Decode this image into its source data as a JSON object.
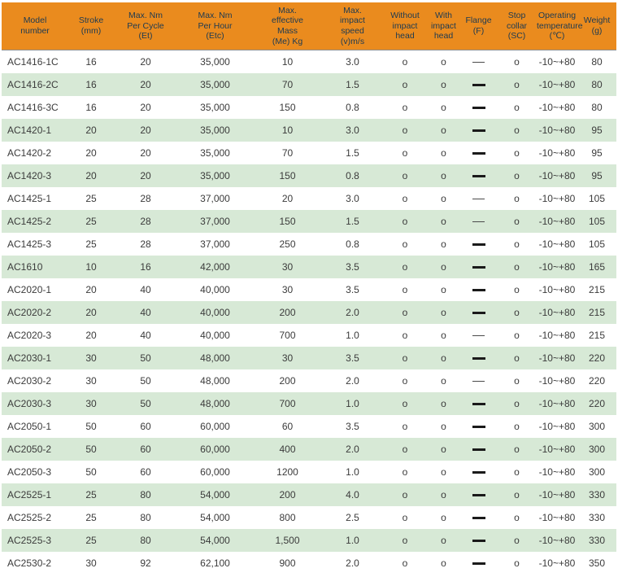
{
  "colors": {
    "header_bg": "#EA8B1E",
    "header_text": "#1C3A52",
    "row_alt_bg": "#D7E9D6",
    "row_bg": "#FFFFFF",
    "body_text": "#3B3B3B",
    "header_rule": "#8F8F8F",
    "dash": "#1A1A1A"
  },
  "table": {
    "columns": [
      {
        "id": "model",
        "label": "Model\nnumber"
      },
      {
        "id": "stroke",
        "label": "Stroke\n(mm)"
      },
      {
        "id": "nm_per_cycle",
        "label": "Max. Nm\nPer Cycle\n(Et)"
      },
      {
        "id": "nm_per_hour",
        "label": "Max. Nm\nPer Hour\n(Etc)"
      },
      {
        "id": "effective_mass",
        "label": "Max.\neffective\nMass\n(Me) Kg"
      },
      {
        "id": "impact_speed",
        "label": "Max.\nimpact\nspeed\n(v)m/s"
      },
      {
        "id": "without_head",
        "label": "Without\nimpact\nhead"
      },
      {
        "id": "with_head",
        "label": "With\nimpact\nhead"
      },
      {
        "id": "flange",
        "label": "Flange\n(F)"
      },
      {
        "id": "stop_collar",
        "label": "Stop\ncollar\n(SC)"
      },
      {
        "id": "operating_temp",
        "label": "Operating\ntemperature\n(℃)"
      },
      {
        "id": "weight",
        "label": "Weight\n(g)"
      }
    ],
    "rows": [
      {
        "model": "AC1416-1C",
        "stroke": "16",
        "nm_per_cycle": "20",
        "nm_per_hour": "35,000",
        "effective_mass": "10",
        "impact_speed": "3.0",
        "without_head": "o",
        "with_head": "o",
        "flange": "dash-thin",
        "stop_collar": "o",
        "operating_temp": "-10~+80",
        "weight": "80"
      },
      {
        "model": "AC1416-2C",
        "stroke": "16",
        "nm_per_cycle": "20",
        "nm_per_hour": "35,000",
        "effective_mass": "70",
        "impact_speed": "1.5",
        "without_head": "o",
        "with_head": "o",
        "flange": "dash-bold",
        "stop_collar": "o",
        "operating_temp": "-10~+80",
        "weight": "80"
      },
      {
        "model": "AC1416-3C",
        "stroke": "16",
        "nm_per_cycle": "20",
        "nm_per_hour": "35,000",
        "effective_mass": "150",
        "impact_speed": "0.8",
        "without_head": "o",
        "with_head": "o",
        "flange": "dash-bold",
        "stop_collar": "o",
        "operating_temp": "-10~+80",
        "weight": "80"
      },
      {
        "model": "AC1420-1",
        "stroke": "20",
        "nm_per_cycle": "20",
        "nm_per_hour": "35,000",
        "effective_mass": "10",
        "impact_speed": "3.0",
        "without_head": "o",
        "with_head": "o",
        "flange": "dash-bold",
        "stop_collar": "o",
        "operating_temp": "-10~+80",
        "weight": "95"
      },
      {
        "model": "AC1420-2",
        "stroke": "20",
        "nm_per_cycle": "20",
        "nm_per_hour": "35,000",
        "effective_mass": "70",
        "impact_speed": "1.5",
        "without_head": "o",
        "with_head": "o",
        "flange": "dash-bold",
        "stop_collar": "o",
        "operating_temp": "-10~+80",
        "weight": "95"
      },
      {
        "model": "AC1420-3",
        "stroke": "20",
        "nm_per_cycle": "20",
        "nm_per_hour": "35,000",
        "effective_mass": "150",
        "impact_speed": "0.8",
        "without_head": "o",
        "with_head": "o",
        "flange": "dash-bold",
        "stop_collar": "o",
        "operating_temp": "-10~+80",
        "weight": "95"
      },
      {
        "model": "AC1425-1",
        "stroke": "25",
        "nm_per_cycle": "28",
        "nm_per_hour": "37,000",
        "effective_mass": "20",
        "impact_speed": "3.0",
        "without_head": "o",
        "with_head": "o",
        "flange": "dash-thin",
        "stop_collar": "o",
        "operating_temp": "-10~+80",
        "weight": "105"
      },
      {
        "model": "AC1425-2",
        "stroke": "25",
        "nm_per_cycle": "28",
        "nm_per_hour": "37,000",
        "effective_mass": "150",
        "impact_speed": "1.5",
        "without_head": "o",
        "with_head": "o",
        "flange": "dash-thin",
        "stop_collar": "o",
        "operating_temp": "-10~+80",
        "weight": "105"
      },
      {
        "model": "AC1425-3",
        "stroke": "25",
        "nm_per_cycle": "28",
        "nm_per_hour": "37,000",
        "effective_mass": "250",
        "impact_speed": "0.8",
        "without_head": "o",
        "with_head": "o",
        "flange": "dash-bold",
        "stop_collar": "o",
        "operating_temp": "-10~+80",
        "weight": "105"
      },
      {
        "model": "AC1610",
        "stroke": "10",
        "nm_per_cycle": "16",
        "nm_per_hour": "42,000",
        "effective_mass": "30",
        "impact_speed": "3.5",
        "without_head": "o",
        "with_head": "o",
        "flange": "dash-bold",
        "stop_collar": "o",
        "operating_temp": "-10~+80",
        "weight": "165"
      },
      {
        "model": "AC2020-1",
        "stroke": "20",
        "nm_per_cycle": "40",
        "nm_per_hour": "40,000",
        "effective_mass": "30",
        "impact_speed": "3.5",
        "without_head": "o",
        "with_head": "o",
        "flange": "dash-bold",
        "stop_collar": "o",
        "operating_temp": "-10~+80",
        "weight": "215"
      },
      {
        "model": "AC2020-2",
        "stroke": "20",
        "nm_per_cycle": "40",
        "nm_per_hour": "40,000",
        "effective_mass": "200",
        "impact_speed": "2.0",
        "without_head": "o",
        "with_head": "o",
        "flange": "dash-bold",
        "stop_collar": "o",
        "operating_temp": "-10~+80",
        "weight": "215"
      },
      {
        "model": "AC2020-3",
        "stroke": "20",
        "nm_per_cycle": "40",
        "nm_per_hour": "40,000",
        "effective_mass": "700",
        "impact_speed": "1.0",
        "without_head": "o",
        "with_head": "o",
        "flange": "dash-thin",
        "stop_collar": "o",
        "operating_temp": "-10~+80",
        "weight": "215"
      },
      {
        "model": "AC2030-1",
        "stroke": "30",
        "nm_per_cycle": "50",
        "nm_per_hour": "48,000",
        "effective_mass": "30",
        "impact_speed": "3.5",
        "without_head": "o",
        "with_head": "o",
        "flange": "dash-bold",
        "stop_collar": "o",
        "operating_temp": "-10~+80",
        "weight": "220"
      },
      {
        "model": "AC2030-2",
        "stroke": "30",
        "nm_per_cycle": "50",
        "nm_per_hour": "48,000",
        "effective_mass": "200",
        "impact_speed": "2.0",
        "without_head": "o",
        "with_head": "o",
        "flange": "dash-thin",
        "stop_collar": "o",
        "operating_temp": "-10~+80",
        "weight": "220"
      },
      {
        "model": "AC2030-3",
        "stroke": "30",
        "nm_per_cycle": "50",
        "nm_per_hour": "48,000",
        "effective_mass": "700",
        "impact_speed": "1.0",
        "without_head": "o",
        "with_head": "o",
        "flange": "dash-bold",
        "stop_collar": "o",
        "operating_temp": "-10~+80",
        "weight": "220"
      },
      {
        "model": "AC2050-1",
        "stroke": "50",
        "nm_per_cycle": "60",
        "nm_per_hour": "60,000",
        "effective_mass": "60",
        "impact_speed": "3.5",
        "without_head": "o",
        "with_head": "o",
        "flange": "dash-bold",
        "stop_collar": "o",
        "operating_temp": "-10~+80",
        "weight": "300"
      },
      {
        "model": "AC2050-2",
        "stroke": "50",
        "nm_per_cycle": "60",
        "nm_per_hour": "60,000",
        "effective_mass": "400",
        "impact_speed": "2.0",
        "without_head": "o",
        "with_head": "o",
        "flange": "dash-bold",
        "stop_collar": "o",
        "operating_temp": "-10~+80",
        "weight": "300"
      },
      {
        "model": "AC2050-3",
        "stroke": "50",
        "nm_per_cycle": "60",
        "nm_per_hour": "60,000",
        "effective_mass": "1200",
        "impact_speed": "1.0",
        "without_head": "o",
        "with_head": "o",
        "flange": "dash-bold",
        "stop_collar": "o",
        "operating_temp": "-10~+80",
        "weight": "300"
      },
      {
        "model": "AC2525-1",
        "stroke": "25",
        "nm_per_cycle": "80",
        "nm_per_hour": "54,000",
        "effective_mass": "200",
        "impact_speed": "4.0",
        "without_head": "o",
        "with_head": "o",
        "flange": "dash-bold",
        "stop_collar": "o",
        "operating_temp": "-10~+80",
        "weight": "330"
      },
      {
        "model": "AC2525-2",
        "stroke": "25",
        "nm_per_cycle": "80",
        "nm_per_hour": "54,000",
        "effective_mass": "800",
        "impact_speed": "2.5",
        "without_head": "o",
        "with_head": "o",
        "flange": "dash-bold",
        "stop_collar": "o",
        "operating_temp": "-10~+80",
        "weight": "330"
      },
      {
        "model": "AC2525-3",
        "stroke": "25",
        "nm_per_cycle": "80",
        "nm_per_hour": "54,000",
        "effective_mass": "1,500",
        "impact_speed": "1.0",
        "without_head": "o",
        "with_head": "o",
        "flange": "dash-bold",
        "stop_collar": "o",
        "operating_temp": "-10~+80",
        "weight": "330"
      },
      {
        "model": "AC2530-2",
        "stroke": "30",
        "nm_per_cycle": "92",
        "nm_per_hour": "62,100",
        "effective_mass": "900",
        "impact_speed": "2.0",
        "without_head": "o",
        "with_head": "o",
        "flange": "dash-bold",
        "stop_collar": "o",
        "operating_temp": "-10~+80",
        "weight": "350"
      }
    ]
  }
}
